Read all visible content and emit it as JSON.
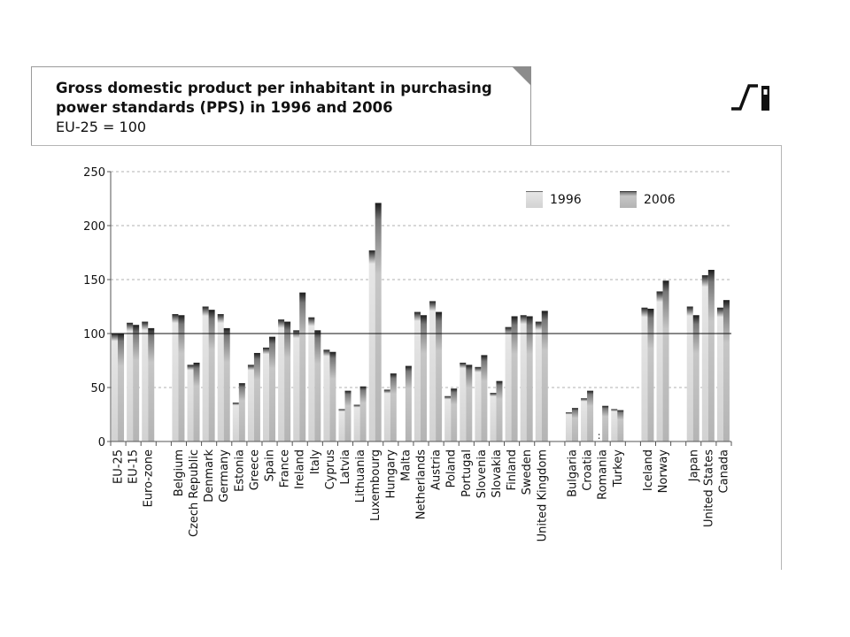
{
  "header": {
    "title_line1": "Gross domestic product per inhabitant in purchasing",
    "title_line2": "power standards (PPS) in 1996 and 2006",
    "subtitle": "EU-25 = 100",
    "logo": "eurostat-logo-icon"
  },
  "chart_data": {
    "type": "bar",
    "ylim": [
      0,
      250
    ],
    "yticks": [
      0,
      50,
      100,
      150,
      200,
      250
    ],
    "reference_line": 100,
    "grid": "horizontal-dashed",
    "legend_position": "top-right",
    "categories": [
      "EU-25",
      "EU-15",
      "Euro-zone",
      "",
      "Belgium",
      "Czech Republic",
      "Denmark",
      "Germany",
      "Estonia",
      "Greece",
      "Spain",
      "France",
      "Ireland",
      "Italy",
      "Cyprus",
      "Latvia",
      "Lithuania",
      "Luxembourg",
      "Hungary",
      "Malta",
      "Netherlands",
      "Austria",
      "Poland",
      "Portugal",
      "Slovenia",
      "Slovakia",
      "Finland",
      "Sweden",
      "United Kingdom",
      "",
      "Bulgaria",
      "Croatia",
      "Romania",
      "Turkey",
      "",
      "Iceland",
      "Norway",
      "",
      "Japan",
      "United States",
      "Canada"
    ],
    "series": [
      {
        "name": "1996",
        "values": [
          100,
          110,
          111,
          null,
          118,
          71,
          125,
          118,
          36,
          71,
          87,
          113,
          103,
          115,
          85,
          30,
          34,
          177,
          48,
          null,
          120,
          130,
          42,
          73,
          69,
          45,
          106,
          117,
          111,
          null,
          27,
          40,
          null,
          30,
          null,
          124,
          139,
          null,
          125,
          154,
          124
        ]
      },
      {
        "name": "2006",
        "values": [
          100,
          108,
          105,
          null,
          117,
          73,
          122,
          105,
          54,
          82,
          97,
          111,
          138,
          103,
          83,
          47,
          51,
          221,
          63,
          70,
          117,
          120,
          49,
          71,
          80,
          56,
          116,
          116,
          121,
          null,
          31,
          47,
          33,
          29,
          null,
          123,
          149,
          null,
          117,
          159,
          131
        ]
      }
    ],
    "annotations": [
      {
        "category": "Romania",
        "series": "1996",
        "text": ":"
      }
    ],
    "colors": {
      "1996": "#d4d4d4",
      "2006": "#b4b4b4",
      "top": "#2a2a2a"
    }
  }
}
